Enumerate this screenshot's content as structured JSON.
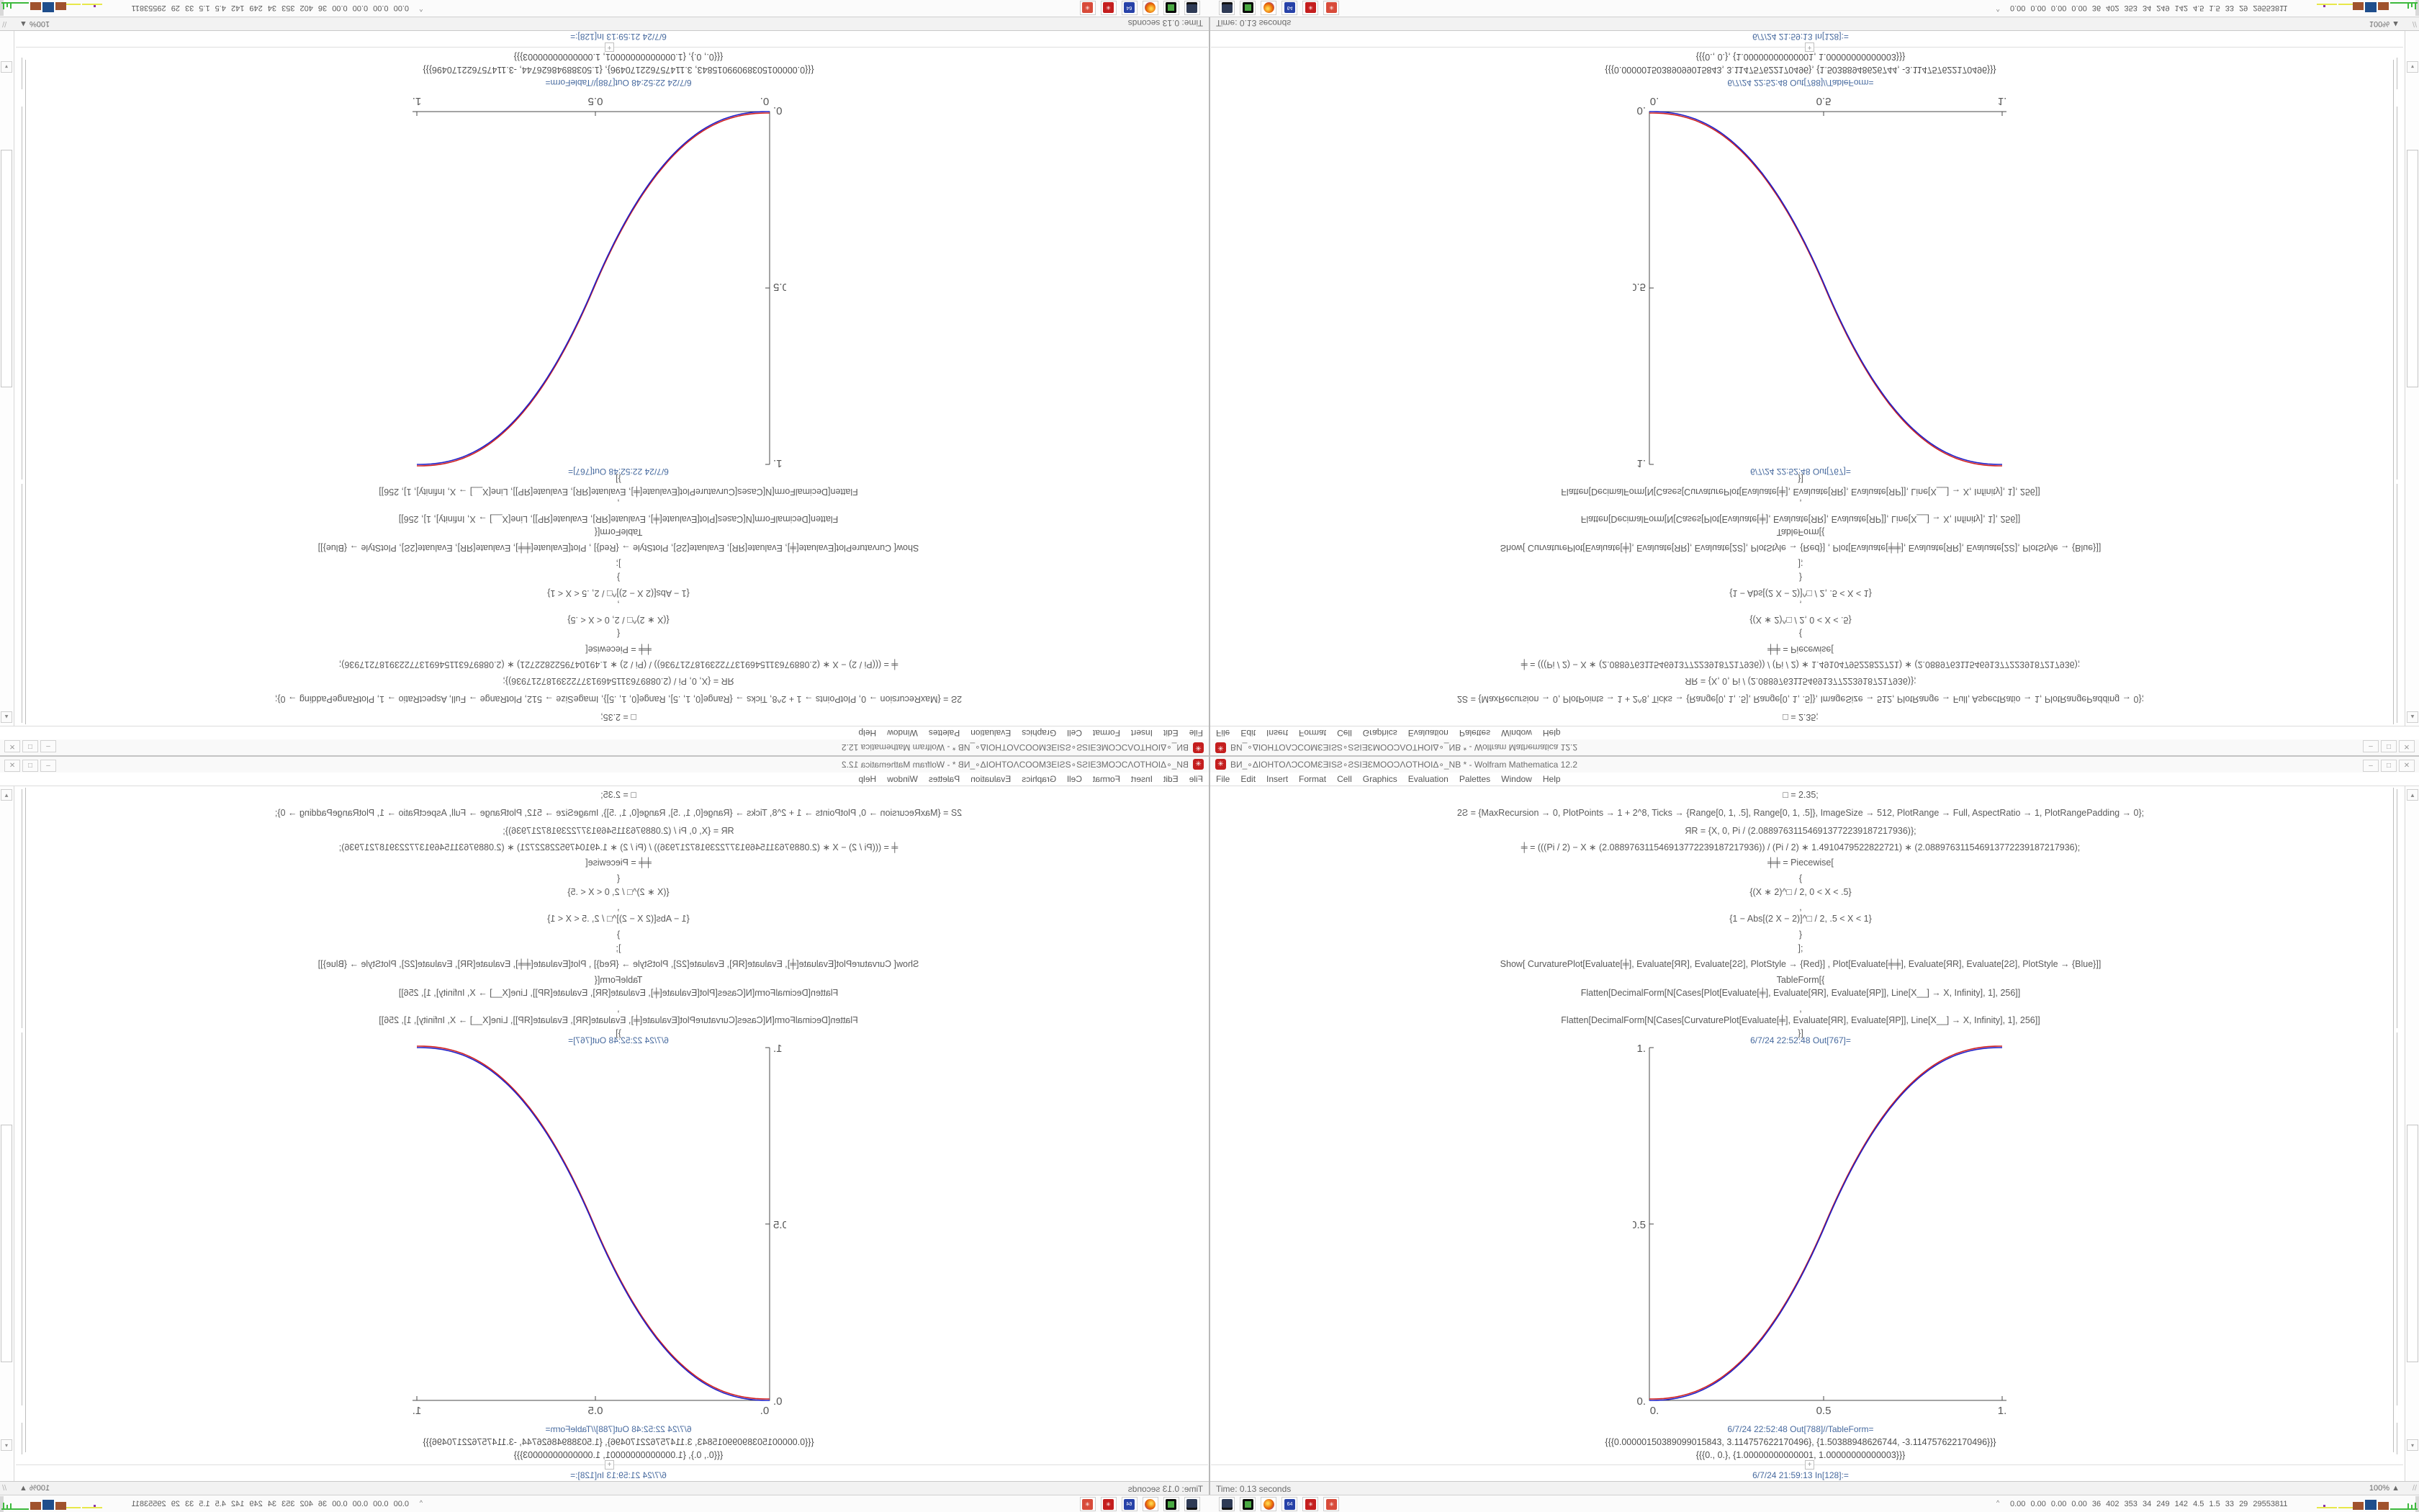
{
  "app": {
    "title": "ВИ_∘ΔIOHTOΛƆCOMƐƎIЅƧ∘ƧЅIƎƐMOOƆΛOTHOIΔ∘_NB * - Wolfram Mathematica 12.2",
    "menu": [
      "File",
      "Edit",
      "Insert",
      "Format",
      "Cell",
      "Graphics",
      "Evaluation",
      "Palettes",
      "Window",
      "Help"
    ],
    "window_buttons": [
      "–",
      "□",
      "✕"
    ],
    "app_icon_glyph": "✳"
  },
  "notebook": {
    "code_lines": [
      "□ = 2.35;",
      "2Ƨ = {MaxRecursion → 0, PlotPoints → 1 + 2^8, Ticks → {Range[0, 1, .5], Range[0, 1, .5]}, ImageSize → 512, PlotRange → Full, AspectRatio → 1, PlotRangePadding → 0};",
      "ЯR = {X, 0, Pi / (2.088976311546913772239187217936)};",
      "╪ = (((Pi / 2) − X ∗ (2.088976311546913772239187217936)) / (Pi / 2) ∗ 1.4910479522822721) ∗ (2.088976311546913772239187217936);",
      "╪╪ = Piecewise[",
      "{",
      "{(X ∗ 2)^□ / 2, 0 < X < .5}",
      ",",
      "{1 − Abs[(2 X − 2)]^□ / 2, .5 < X < 1}",
      "}",
      "];",
      "Show[  CurvaturePlot[Evaluate[╪], Evaluate[ЯR], Evaluate[2Ƨ], PlotStyle → {Red}]  ,  Plot[Evaluate[╪╪], Evaluate[ЯR], Evaluate[2Ƨ], PlotStyle → {Blue}]]",
      "TableForm[{",
      "Flatten[DecimalForm[N[Cases[Plot[Evaluate[╪], Evaluate[ЯR], Evaluate[ЯP]], Line[X__] → X, Infinity], 1], 256]]",
      ",",
      "Flatten[DecimalForm[N[Cases[CurvaturePlot[Evaluate[╪], Evaluate[ЯR], Evaluate[ЯP]], Line[X__] → X, Infinity], 1], 256]]",
      "}]"
    ],
    "out_plot_label": "6/7/24 22:52:48 Out[767]=",
    "out_table_label": "6/7/24 22:52:48 Out[788]//TableForm=",
    "table_rows": [
      "{{{0.00000150389099015843, 3.114757622170496}, {1.50388948626744, -3.114757622170496}}}",
      "{{{0., 0.}, {1.00000000000001, 1.00000000000003}}}"
    ],
    "pending_label": "6/7/24 21:59:13 In[128]:=",
    "plus_glyph": "+",
    "zoom_level": "100%",
    "zoom_up_glyph": "▲",
    "grip_glyph": "//",
    "scroll_up_glyph": "▲",
    "scroll_down_glyph": "▾"
  },
  "status": {
    "time_text": "Time: 0.13 seconds"
  },
  "taskbar": {
    "icons": [
      "screenshot-tool-icon",
      "package-manager-icon",
      "firefox-icon",
      "floppy64-icon",
      "mathematica-icon",
      "mathematica-alt-icon"
    ],
    "floppy_label": "64",
    "gear_glyph": "✳",
    "tray_caret": "^",
    "tray_text": "0.00 0.00 0.00 0.00 36 402 353 34 249 142 4.5 1.5 33 29 29553811"
  },
  "chart_data": {
    "type": "line",
    "title": "",
    "xlabel": "",
    "ylabel": "",
    "xlim": [
      0,
      1
    ],
    "ylim": [
      0,
      1
    ],
    "xticks": [
      "0.",
      "0.5",
      "1."
    ],
    "yticks": [
      "0.",
      "0.5",
      "1."
    ],
    "grid": false,
    "legend": "none",
    "description": "Piecewise smoothstep curve y=(2x)^2.35/2 for 0<x<.5, y=1-(2-2x)^2.35/2 for .5<x<1; red (CurvaturePlot) and blue (Plot) curves nearly overlapping",
    "omega": 2.35,
    "x": [
      0,
      0.1,
      0.2,
      0.3,
      0.4,
      0.5,
      0.6,
      0.7,
      0.8,
      0.9,
      1.0
    ],
    "series": [
      {
        "name": "Red (CurvaturePlot)",
        "color": "#d02020",
        "values": [
          0,
          0.011,
          0.058,
          0.151,
          0.296,
          0.5,
          0.704,
          0.849,
          0.942,
          0.989,
          1.0
        ]
      },
      {
        "name": "Blue (Plot)",
        "color": "#2020c8",
        "values": [
          0,
          0.011,
          0.058,
          0.151,
          0.296,
          0.5,
          0.704,
          0.849,
          0.942,
          0.989,
          1.0
        ]
      }
    ]
  },
  "layout_note": "Screen is a 2x2 kaleidoscope: bottom-right quadrant is the original desktop; bottom-left is mirrored horizontally, top-right mirrored vertically, top-left rotated 180 degrees."
}
